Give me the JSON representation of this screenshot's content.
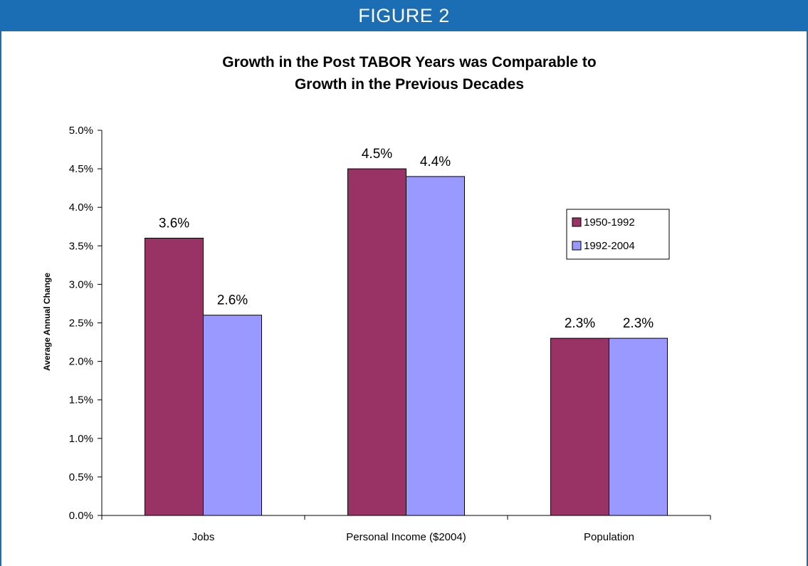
{
  "figure_label": "FIGURE 2",
  "chart_data": {
    "type": "bar",
    "title": [
      "Growth in the Post TABOR Years was Comparable to",
      "Growth in the Previous Decades"
    ],
    "xlabel": "",
    "ylabel": "Average Annual Change",
    "categories": [
      "Jobs",
      "Personal Income ($2004)",
      "Population"
    ],
    "series": [
      {
        "name": "1950-1992",
        "values": [
          3.6,
          4.5,
          2.3
        ],
        "color": "#993366"
      },
      {
        "name": "1992-2004",
        "values": [
          2.6,
          4.4,
          2.3
        ],
        "color": "#9999ff"
      }
    ],
    "value_labels": [
      [
        "3.6%",
        "4.5%",
        "2.3%"
      ],
      [
        "2.6%",
        "4.4%",
        "2.3%"
      ]
    ],
    "ylim": [
      0,
      5
    ],
    "yticks": [
      0,
      0.5,
      1,
      1.5,
      2,
      2.5,
      3,
      3.5,
      4,
      4.5,
      5
    ],
    "ytick_labels": [
      "0.0%",
      "0.5%",
      "1.0%",
      "1.5%",
      "2.0%",
      "2.5%",
      "3.0%",
      "3.5%",
      "4.0%",
      "4.5%",
      "5.0%"
    ],
    "grid": false,
    "legend_position": "right"
  }
}
